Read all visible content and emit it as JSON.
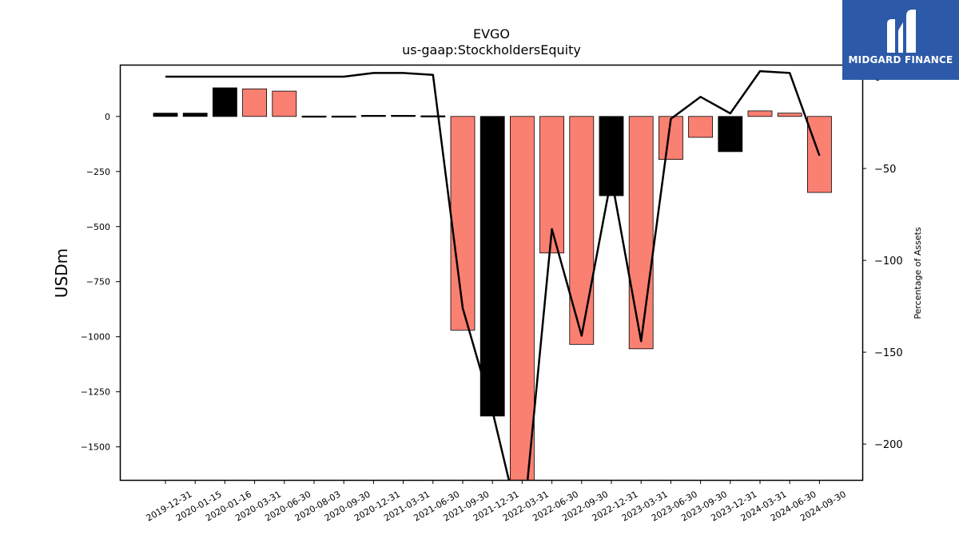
{
  "colors": {
    "bar_positive_pct": "#fa8072",
    "bar_negative_pct": "#000000",
    "line": "#000000",
    "brand": "#2d5aa8"
  },
  "logo": {
    "text": "MIDGARD FINANCE",
    "icon": "midgard-m-icon"
  },
  "chart_data": {
    "type": "bar",
    "title": "EVGO",
    "subtitle": "us-gaap:StockholdersEquity",
    "ylabel": "USDm",
    "y2label": "Percentage of Assets",
    "ylim": [
      -1650,
      235
    ],
    "y2lim": [
      -219.5,
      6.5
    ],
    "yticks": [
      0,
      -250,
      -500,
      -750,
      -1000,
      -1250,
      -1500
    ],
    "y2ticks": [
      0,
      -50,
      -100,
      -150,
      -200
    ],
    "categories": [
      "2019-12-31",
      "2020-01-15",
      "2020-01-16",
      "2020-03-31",
      "2020-06-30",
      "2020-08-03",
      "2020-09-30",
      "2020-12-31",
      "2021-03-31",
      "2021-06-30",
      "2021-09-30",
      "2021-12-31",
      "2022-03-31",
      "2022-06-30",
      "2022-09-30",
      "2022-12-31",
      "2023-03-31",
      "2023-06-30",
      "2023-09-30",
      "2023-12-31",
      "2024-03-31",
      "2024-06-30",
      "2024-09-30"
    ],
    "series": [
      {
        "kind": "bar",
        "values": [
          15,
          15,
          130,
          125,
          115,
          2,
          2,
          5,
          5,
          3,
          -970,
          -1360,
          -1690,
          -620,
          -1035,
          -360,
          -1055,
          -195,
          -95,
          -160,
          25,
          15,
          -345
        ],
        "colors": [
          "#000000",
          "#000000",
          "#000000",
          "#fa8072",
          "#fa8072",
          "#000000",
          "#000000",
          "#000000",
          "#000000",
          "#000000",
          "#fa8072",
          "#000000",
          "#fa8072",
          "#fa8072",
          "#fa8072",
          "#000000",
          "#fa8072",
          "#fa8072",
          "#fa8072",
          "#000000",
          "#fa8072",
          "#fa8072",
          "#fa8072"
        ]
      },
      {
        "kind": "line",
        "values": [
          0,
          0,
          0,
          0,
          0,
          0,
          0,
          2,
          2,
          1,
          -126,
          -182,
          -250,
          -83,
          -141,
          -55,
          -144,
          -23,
          -11,
          -20,
          3,
          2,
          -43
        ]
      }
    ]
  }
}
